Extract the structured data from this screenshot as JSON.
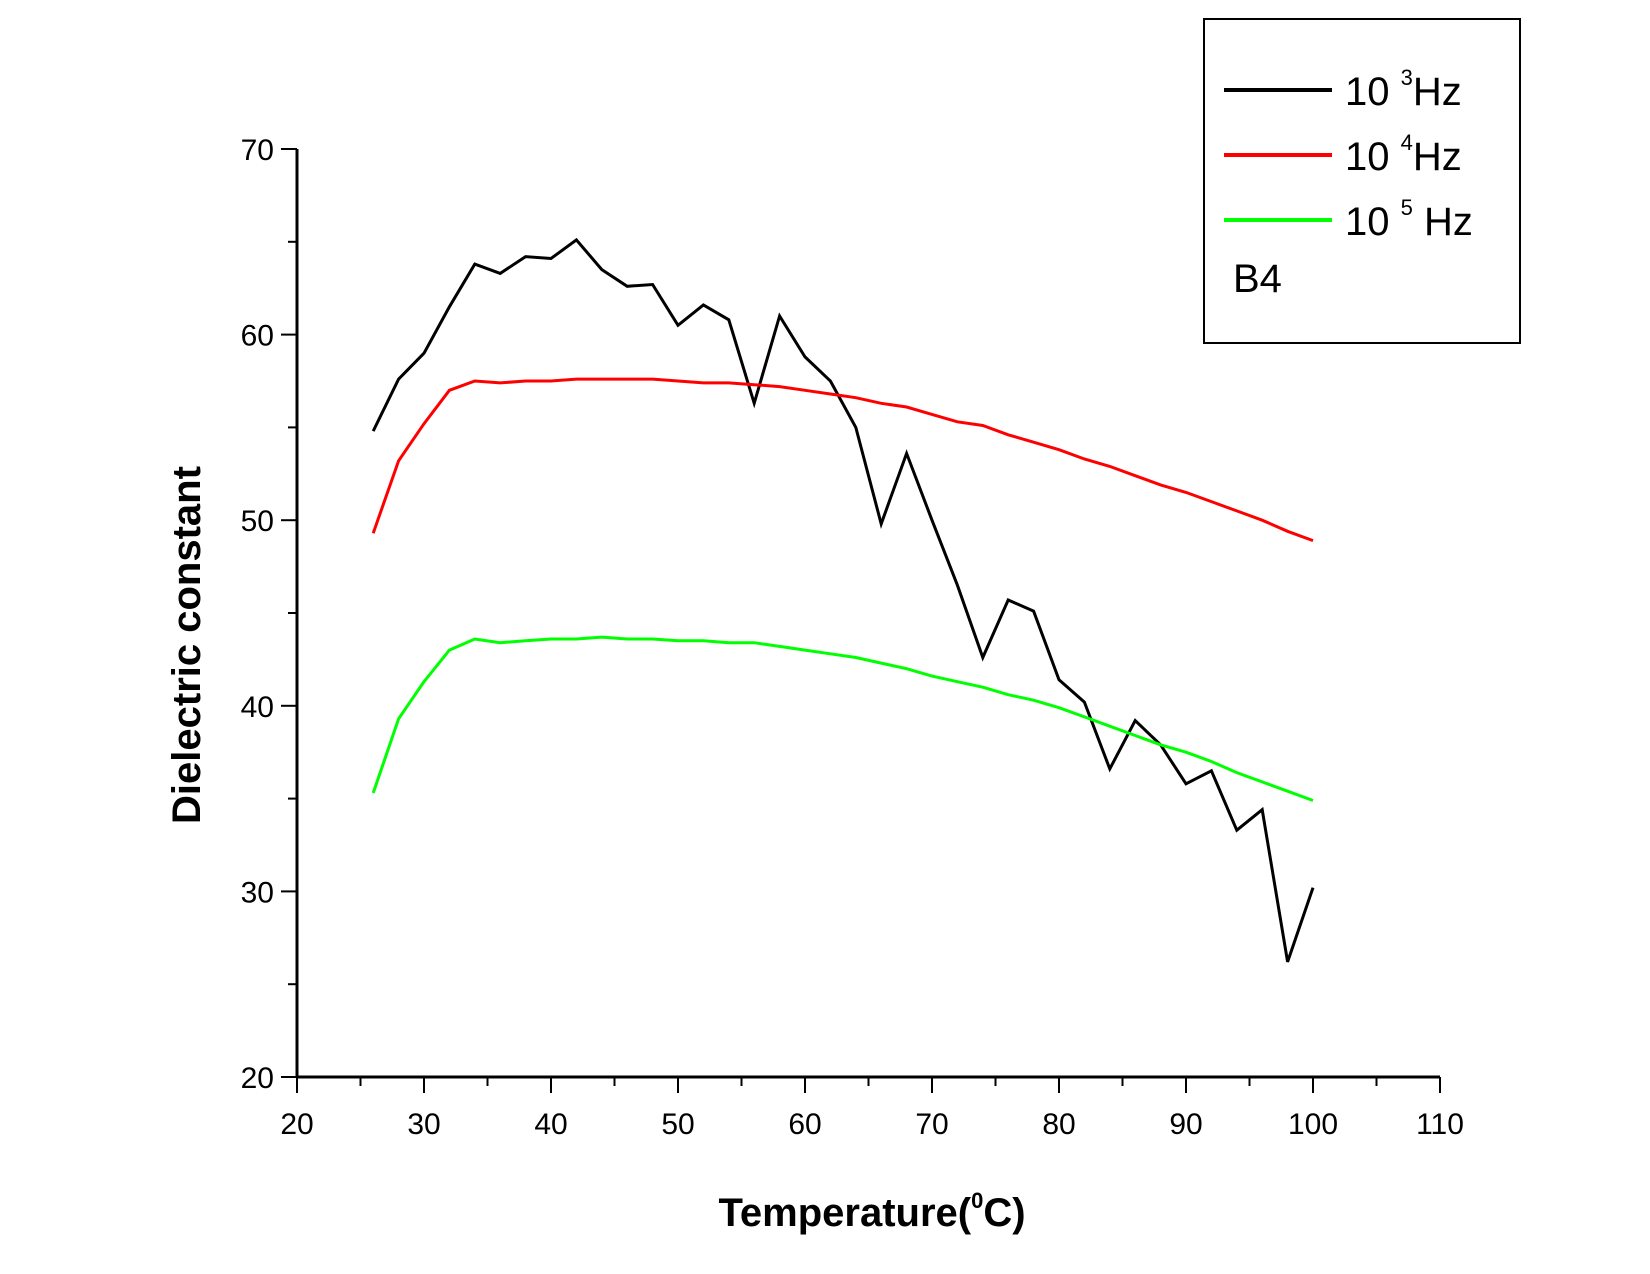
{
  "chart_data": {
    "type": "line",
    "xlabel": "Temperature(",
    "xlabel_sup": "0",
    "xlabel_end": "C)",
    "ylabel": "Dielectric constant",
    "xlim": [
      20,
      110
    ],
    "ylim": [
      20,
      70
    ],
    "xticks": [
      "20",
      "30",
      "40",
      "50",
      "60",
      "70",
      "80",
      "90",
      "100",
      "110"
    ],
    "yticks": [
      "20",
      "30",
      "40",
      "50",
      "60",
      "70"
    ],
    "legend_position": "top-right",
    "legend_note": "B4",
    "x": [
      26,
      28,
      30,
      32,
      34,
      36,
      38,
      40,
      42,
      44,
      46,
      48,
      50,
      52,
      54,
      56,
      58,
      60,
      62,
      64,
      66,
      68,
      70,
      72,
      74,
      76,
      78,
      80,
      82,
      84,
      86,
      88,
      90,
      92,
      94,
      96,
      98,
      100
    ],
    "series": [
      {
        "name_base": "10",
        "name_sup": "3",
        "name_unit": "Hz",
        "color": "#000000",
        "values": [
          54.8,
          57.6,
          59.0,
          61.5,
          63.8,
          63.3,
          64.2,
          64.1,
          65.1,
          63.5,
          62.6,
          62.7,
          60.5,
          61.6,
          60.8,
          56.3,
          61.0,
          58.8,
          57.5,
          55.0,
          49.8,
          53.6,
          50.0,
          46.5,
          42.6,
          45.7,
          45.1,
          41.4,
          40.2,
          36.6,
          39.2,
          37.9,
          35.8,
          36.5,
          33.3,
          34.4,
          26.2,
          30.2
        ]
      },
      {
        "name_base": "10",
        "name_sup": "4",
        "name_unit": "Hz",
        "color": "#ff0000",
        "values": [
          49.3,
          53.2,
          55.2,
          57.0,
          57.5,
          57.4,
          57.5,
          57.5,
          57.6,
          57.6,
          57.6,
          57.6,
          57.5,
          57.4,
          57.4,
          57.3,
          57.2,
          57.0,
          56.8,
          56.6,
          56.3,
          56.1,
          55.7,
          55.3,
          55.1,
          54.6,
          54.2,
          53.8,
          53.3,
          52.9,
          52.4,
          51.9,
          51.5,
          51.0,
          50.5,
          50.0,
          49.4,
          48.9
        ]
      },
      {
        "name_base": "10",
        "name_sup": "5",
        "name_unit": "Hz",
        "color": "#00ff00",
        "values": [
          35.3,
          39.3,
          41.3,
          43.0,
          43.6,
          43.4,
          43.5,
          43.6,
          43.6,
          43.7,
          43.6,
          43.6,
          43.5,
          43.5,
          43.4,
          43.4,
          43.2,
          43.0,
          42.8,
          42.6,
          42.3,
          42.0,
          41.6,
          41.3,
          41.0,
          40.6,
          40.3,
          39.9,
          39.4,
          38.9,
          38.4,
          37.9,
          37.5,
          37.0,
          36.4,
          35.9,
          35.4,
          34.9
        ]
      }
    ]
  }
}
